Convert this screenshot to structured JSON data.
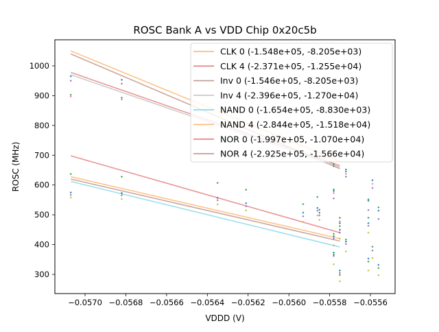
{
  "chart_data": {
    "type": "scatter",
    "title": "ROSC Bank A vs VDD Chip 0x20c5b",
    "xlabel": "VDDD (V)",
    "ylabel": "ROSC (MHz)",
    "xlim": [
      -0.05715,
      -0.05552
    ],
    "ylim": [
      240,
      1085
    ],
    "xticks": [
      -0.057,
      -0.0568,
      -0.0566,
      -0.0564,
      -0.0562,
      -0.056,
      -0.0558,
      -0.0556
    ],
    "xtick_labels": [
      "−0.0570",
      "−0.0568",
      "−0.0566",
      "−0.0564",
      "−0.0562",
      "−0.0560",
      "−0.0558",
      "−0.0556"
    ],
    "yticks": [
      300,
      400,
      500,
      600,
      700,
      800,
      900,
      1000
    ],
    "ytick_labels": [
      "300",
      "400",
      "500",
      "600",
      "700",
      "800",
      "900",
      "1000"
    ],
    "legend_position": "top-right",
    "fit_lines": [
      {
        "name": "CLK 0 (-1.548e+05, -8.205e+03)",
        "color": "#ffbb78",
        "x": [
          -0.05707,
          -0.05575
        ],
        "y": [
          1050,
          680
        ]
      },
      {
        "name": "CLK 4 (-2.371e+05, -1.255e+04)",
        "color": "#e88a8a",
        "x": [
          -0.05707,
          -0.05575
        ],
        "y": [
          978,
          665
        ]
      },
      {
        "name": "Inv 0 (-1.546e+05, -8.205e+03)",
        "color": "#c49c94",
        "x": [
          -0.05707,
          -0.05575
        ],
        "y": [
          1040,
          655
        ]
      },
      {
        "name": "Inv 4 (-2.396e+05, -1.270e+04)",
        "color": "#c7c7c7",
        "x": [
          -0.05707,
          -0.05575
        ],
        "y": [
          970,
          660
        ]
      },
      {
        "name": "NAND 0 (-1.654e+05, -8.830e+03)",
        "color": "#8fdde8",
        "x": [
          -0.05707,
          -0.05575
        ],
        "y": [
          612,
          392
        ]
      },
      {
        "name": "NAND 4 (-2.844e+05, -1.518e+04)",
        "color": "#ffbb78",
        "x": [
          -0.05707,
          -0.05575
        ],
        "y": [
          628,
          420
        ]
      },
      {
        "name": "NOR 0 (-1.997e+05, -1.070e+04)",
        "color": "#e88a8a",
        "x": [
          -0.05707,
          -0.05575
        ],
        "y": [
          698,
          440
        ]
      },
      {
        "name": "NOR 4 (-2.925e+05, -1.566e+04)",
        "color": "#c49c94",
        "x": [
          -0.05707,
          -0.05575
        ],
        "y": [
          620,
          412
        ]
      }
    ],
    "points": [
      {
        "x": -0.05707,
        "y": 965,
        "c": "#1f77b4"
      },
      {
        "x": -0.05707,
        "y": 950,
        "c": "#9467bd"
      },
      {
        "x": -0.05707,
        "y": 903,
        "c": "#2ca02c"
      },
      {
        "x": -0.05707,
        "y": 897,
        "c": "#e377c2"
      },
      {
        "x": -0.05707,
        "y": 637,
        "c": "#2ca02c"
      },
      {
        "x": -0.05707,
        "y": 575,
        "c": "#1f77b4"
      },
      {
        "x": -0.05707,
        "y": 567,
        "c": "#9467bd"
      },
      {
        "x": -0.05707,
        "y": 558,
        "c": "#bcbd22"
      },
      {
        "x": -0.05682,
        "y": 953,
        "c": "#1f77b4"
      },
      {
        "x": -0.05682,
        "y": 940,
        "c": "#9467bd"
      },
      {
        "x": -0.05682,
        "y": 893,
        "c": "#2ca02c"
      },
      {
        "x": -0.05682,
        "y": 887,
        "c": "#e377c2"
      },
      {
        "x": -0.05682,
        "y": 628,
        "c": "#2ca02c"
      },
      {
        "x": -0.05682,
        "y": 573,
        "c": "#1f77b4"
      },
      {
        "x": -0.05682,
        "y": 565,
        "c": "#9467bd"
      },
      {
        "x": -0.05682,
        "y": 553,
        "c": "#bcbd22"
      },
      {
        "x": -0.05635,
        "y": 607,
        "c": "#2ca02c"
      },
      {
        "x": -0.05635,
        "y": 557,
        "c": "#1f77b4"
      },
      {
        "x": -0.05635,
        "y": 549,
        "c": "#9467bd"
      },
      {
        "x": -0.05635,
        "y": 535,
        "c": "#bcbd22"
      },
      {
        "x": -0.05621,
        "y": 584,
        "c": "#2ca02c"
      },
      {
        "x": -0.05621,
        "y": 539,
        "c": "#1f77b4"
      },
      {
        "x": -0.05621,
        "y": 529,
        "c": "#9467bd"
      },
      {
        "x": -0.05621,
        "y": 515,
        "c": "#bcbd22"
      },
      {
        "x": -0.05593,
        "y": 536,
        "c": "#2ca02c"
      },
      {
        "x": -0.05593,
        "y": 507,
        "c": "#1f77b4"
      },
      {
        "x": -0.05593,
        "y": 495,
        "c": "#9467bd"
      },
      {
        "x": -0.05593,
        "y": 476,
        "c": "#bcbd22"
      },
      {
        "x": -0.05586,
        "y": 560,
        "c": "#2ca02c"
      },
      {
        "x": -0.05586,
        "y": 523,
        "c": "#1f77b4"
      },
      {
        "x": -0.05586,
        "y": 514,
        "c": "#9467bd"
      },
      {
        "x": -0.05586,
        "y": 498,
        "c": "#bcbd22"
      },
      {
        "x": -0.05585,
        "y": 507,
        "c": "#1f77b4"
      },
      {
        "x": -0.05585,
        "y": 498,
        "c": "#9467bd"
      },
      {
        "x": -0.05585,
        "y": 483,
        "c": "#bcbd22"
      },
      {
        "x": -0.05585,
        "y": 517,
        "c": "#2ca02c"
      },
      {
        "x": -0.05578,
        "y": 670,
        "c": "#2ca02c"
      },
      {
        "x": -0.05578,
        "y": 663,
        "c": "#9467bd"
      },
      {
        "x": -0.05578,
        "y": 585,
        "c": "#2ca02c"
      },
      {
        "x": -0.05578,
        "y": 580,
        "c": "#1f77b4"
      },
      {
        "x": -0.05578,
        "y": 573,
        "c": "#e377c2"
      },
      {
        "x": -0.05578,
        "y": 555,
        "c": "#9467bd"
      },
      {
        "x": -0.05578,
        "y": 436,
        "c": "#2ca02c"
      },
      {
        "x": -0.05578,
        "y": 428,
        "c": "#1f77b4"
      },
      {
        "x": -0.05578,
        "y": 420,
        "c": "#9467bd"
      },
      {
        "x": -0.05578,
        "y": 397,
        "c": "#bcbd22"
      },
      {
        "x": -0.05578,
        "y": 373,
        "c": "#1f77b4"
      },
      {
        "x": -0.05578,
        "y": 366,
        "c": "#2ca02c"
      },
      {
        "x": -0.05578,
        "y": 362,
        "c": "#9467bd"
      },
      {
        "x": -0.05578,
        "y": 334,
        "c": "#bcbd22"
      },
      {
        "x": -0.05575,
        "y": 490,
        "c": "#2ca02c"
      },
      {
        "x": -0.05575,
        "y": 478,
        "c": "#e377c2"
      },
      {
        "x": -0.05575,
        "y": 472,
        "c": "#1f77b4"
      },
      {
        "x": -0.05575,
        "y": 462,
        "c": "#2ca02c"
      },
      {
        "x": -0.05575,
        "y": 450,
        "c": "#1f77b4"
      },
      {
        "x": -0.05575,
        "y": 449,
        "c": "#9467bd"
      },
      {
        "x": -0.05575,
        "y": 440,
        "c": "#9467bd"
      },
      {
        "x": -0.05575,
        "y": 420,
        "c": "#bcbd22"
      },
      {
        "x": -0.05575,
        "y": 313,
        "c": "#1f77b4"
      },
      {
        "x": -0.05575,
        "y": 305,
        "c": "#9467bd"
      },
      {
        "x": -0.05575,
        "y": 298,
        "c": "#2ca02c"
      },
      {
        "x": -0.05575,
        "y": 277,
        "c": "#bcbd22"
      },
      {
        "x": -0.05572,
        "y": 652,
        "c": "#1f77b4"
      },
      {
        "x": -0.05572,
        "y": 645,
        "c": "#2ca02c"
      },
      {
        "x": -0.05572,
        "y": 637,
        "c": "#e377c2"
      },
      {
        "x": -0.05572,
        "y": 628,
        "c": "#9467bd"
      },
      {
        "x": -0.05572,
        "y": 417,
        "c": "#2ca02c"
      },
      {
        "x": -0.05572,
        "y": 410,
        "c": "#1f77b4"
      },
      {
        "x": -0.05572,
        "y": 402,
        "c": "#9467bd"
      },
      {
        "x": -0.05572,
        "y": 377,
        "c": "#bcbd22"
      },
      {
        "x": -0.05561,
        "y": 552,
        "c": "#2ca02c"
      },
      {
        "x": -0.05561,
        "y": 547,
        "c": "#1f77b4"
      },
      {
        "x": -0.05561,
        "y": 516,
        "c": "#9467bd"
      },
      {
        "x": -0.05561,
        "y": 490,
        "c": "#2ca02c"
      },
      {
        "x": -0.05561,
        "y": 472,
        "c": "#1f77b4"
      },
      {
        "x": -0.05561,
        "y": 463,
        "c": "#9467bd"
      },
      {
        "x": -0.05561,
        "y": 440,
        "c": "#bcbd22"
      },
      {
        "x": -0.05561,
        "y": 353,
        "c": "#1f77b4"
      },
      {
        "x": -0.05561,
        "y": 343,
        "c": "#2ca02c"
      },
      {
        "x": -0.05561,
        "y": 313,
        "c": "#bcbd22"
      },
      {
        "x": -0.05559,
        "y": 616,
        "c": "#1f77b4"
      },
      {
        "x": -0.05559,
        "y": 604,
        "c": "#e377c2"
      },
      {
        "x": -0.05559,
        "y": 590,
        "c": "#9467bd"
      },
      {
        "x": -0.05559,
        "y": 393,
        "c": "#2ca02c"
      },
      {
        "x": -0.05559,
        "y": 380,
        "c": "#9467bd"
      },
      {
        "x": -0.05559,
        "y": 355,
        "c": "#bcbd22"
      },
      {
        "x": -0.05556,
        "y": 525,
        "c": "#2ca02c"
      },
      {
        "x": -0.05556,
        "y": 514,
        "c": "#1f77b4"
      },
      {
        "x": -0.05556,
        "y": 486,
        "c": "#9467bd"
      },
      {
        "x": -0.05556,
        "y": 332,
        "c": "#1f77b4"
      },
      {
        "x": -0.05556,
        "y": 321,
        "c": "#2ca02c"
      },
      {
        "x": -0.05556,
        "y": 297,
        "c": "#bcbd22"
      }
    ]
  }
}
